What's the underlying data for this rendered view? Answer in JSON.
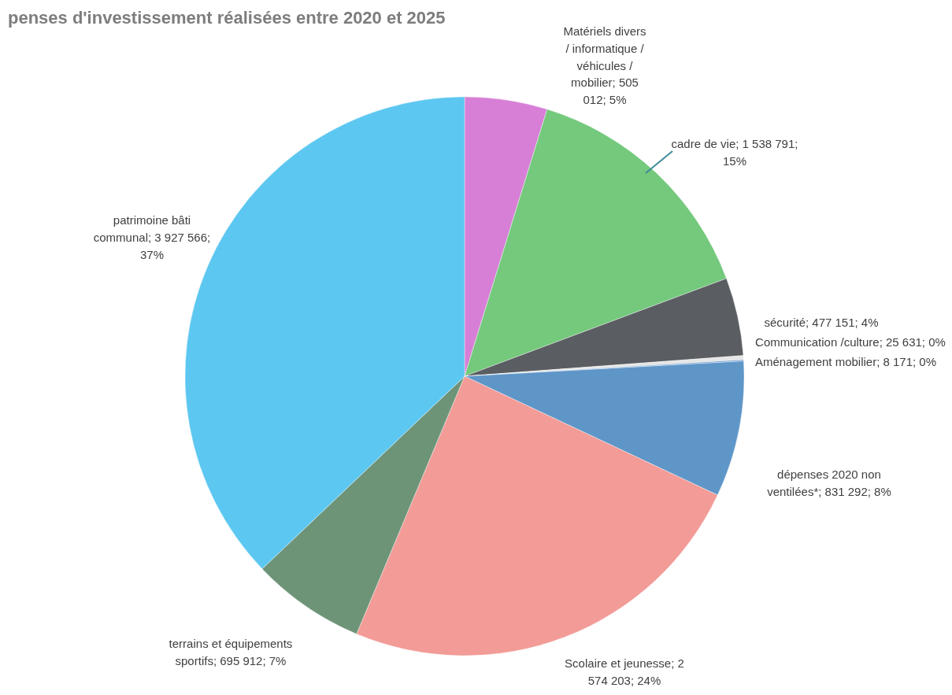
{
  "chart_data": {
    "type": "pie",
    "title": "penses d'investissement réalisées entre 2020 et 2025",
    "categories": [
      "Matériels divers / informatique / véhicules / mobilier; 505 012; 5%",
      "cadre de vie; 1 538 791; 15%",
      "sécurité; 477 151; 4%",
      "Communication /culture; 25 631; 0%",
      "Aménagement mobilier; 8 171; 0%",
      "dépenses 2020 non ventilées*; 831 292; 8%",
      "Scolaire et jeunesse; 2 574 203; 24%",
      "terrains et équipements sportifs; 695 912; 7%",
      "patrimoine bâti communal; 3 927 566; 37%"
    ],
    "values": [
      505012,
      1538791,
      477151,
      25631,
      8171,
      831292,
      2574203,
      695912,
      3927566
    ],
    "colors": [
      "#d77fd6",
      "#74c97c",
      "#5a5d62",
      "#e6e6e6",
      "#6f9fd0",
      "#5f96c8",
      "#f29b97",
      "#6e9478",
      "#5cc7f1"
    ]
  }
}
